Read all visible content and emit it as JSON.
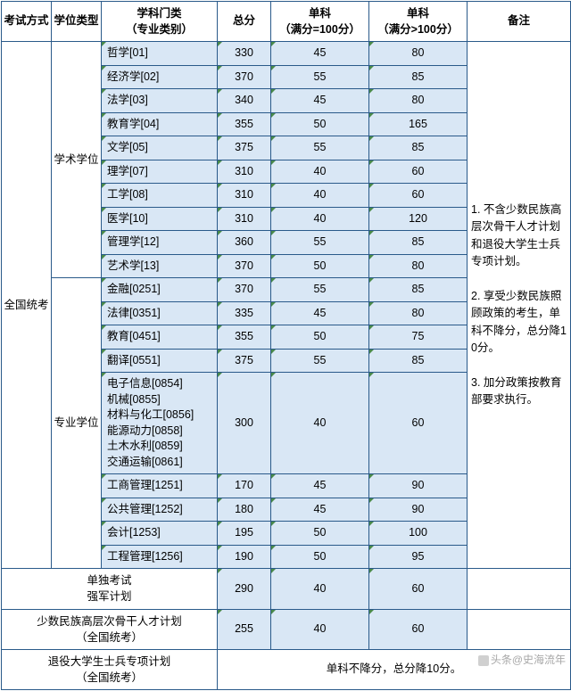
{
  "colors": {
    "border": "#2a5a8a",
    "band_bg": "#d9e7f5",
    "corner": "#4a8a4a",
    "text": "#000000",
    "watermark": "#a8a8a8"
  },
  "col_widths": {
    "c1": 56,
    "c2": 56,
    "c3": 130,
    "c4": 60,
    "c5": 110,
    "c6": 110,
    "c7": 116
  },
  "header": {
    "c1": "考试方式",
    "c2": "学位类型",
    "c3": "学科门类\n（专业类别）",
    "c4": "总分",
    "c5": "单科\n（满分=100分）",
    "c6": "单科\n（满分>100分）",
    "c7": "备注"
  },
  "exam_type": "全国统考",
  "degree_types": {
    "academic": "学术学位",
    "professional": "专业学位"
  },
  "academic_rows": [
    {
      "subject": "哲学[01]",
      "total": "330",
      "s100": "45",
      "sgt": "80"
    },
    {
      "subject": "经济学[02]",
      "total": "370",
      "s100": "55",
      "sgt": "85"
    },
    {
      "subject": "法学[03]",
      "total": "340",
      "s100": "45",
      "sgt": "80"
    },
    {
      "subject": "教育学[04]",
      "total": "355",
      "s100": "50",
      "sgt": "165"
    },
    {
      "subject": "文学[05]",
      "total": "375",
      "s100": "55",
      "sgt": "85"
    },
    {
      "subject": "理学[07]",
      "total": "310",
      "s100": "40",
      "sgt": "60"
    },
    {
      "subject": "工学[08]",
      "total": "310",
      "s100": "40",
      "sgt": "60"
    },
    {
      "subject": "医学[10]",
      "total": "310",
      "s100": "40",
      "sgt": "120"
    },
    {
      "subject": "管理学[12]",
      "total": "360",
      "s100": "55",
      "sgt": "85"
    },
    {
      "subject": "艺术学[13]",
      "total": "370",
      "s100": "50",
      "sgt": "80"
    }
  ],
  "professional_rows": [
    {
      "subject": "金融[0251]",
      "total": "370",
      "s100": "55",
      "sgt": "85"
    },
    {
      "subject": "法律[0351]",
      "total": "335",
      "s100": "45",
      "sgt": "80"
    },
    {
      "subject": "教育[0451]",
      "total": "355",
      "s100": "50",
      "sgt": "75"
    },
    {
      "subject": "翻译[0551]",
      "total": "375",
      "s100": "55",
      "sgt": "85"
    },
    {
      "subject": "电子信息[0854]\n机械[0855]\n材料与化工[0856]\n能源动力[0858]\n土木水利[0859]\n交通运输[0861]",
      "total": "300",
      "s100": "40",
      "sgt": "60"
    },
    {
      "subject": "工商管理[1251]",
      "total": "170",
      "s100": "45",
      "sgt": "90"
    },
    {
      "subject": "公共管理[1252]",
      "total": "180",
      "s100": "45",
      "sgt": "90"
    },
    {
      "subject": "会计[1253]",
      "total": "195",
      "s100": "50",
      "sgt": "100"
    },
    {
      "subject": "工程管理[1256]",
      "total": "190",
      "s100": "50",
      "sgt": "95"
    }
  ],
  "remarks_text": "1. 不含少数民族高层次骨干人才计划和退役大学生士兵专项计划。\n\n2. 享受少数民族照顾政策的考生，单科不降分，总分降10分。\n\n3. 加分政策按教育部要求执行。",
  "bottom_rows": [
    {
      "label": "单独考试\n强军计划",
      "total": "290",
      "s100": "40",
      "sgt": "60"
    },
    {
      "label": "少数民族高层次骨干人才计划\n（全国统考）",
      "total": "255",
      "s100": "40",
      "sgt": "60"
    },
    {
      "label": "退役大学生士兵专项计划\n（全国统考）",
      "merged_text": "单科不降分，总分降10分。"
    }
  ],
  "watermark": "头条@史海流年"
}
